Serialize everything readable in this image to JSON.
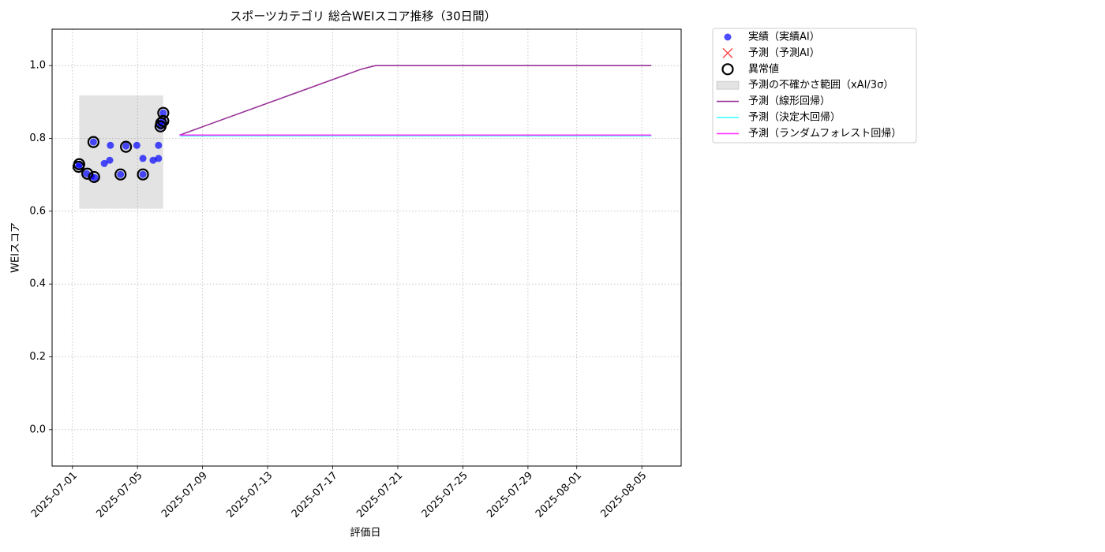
{
  "chart_data": {
    "type": "scatter",
    "title": "スポーツカテゴリ 総合WEIスコア推移（30日間）",
    "x_label": "評価日",
    "y_label": "WEIスコア",
    "xlim": [
      "2025-06-29T18:00",
      "2025-08-07T10:00"
    ],
    "xticks": [
      "2025-07-01",
      "2025-07-05",
      "2025-07-09",
      "2025-07-13",
      "2025-07-17",
      "2025-07-21",
      "2025-07-25",
      "2025-07-29",
      "2025-08-01",
      "2025-08-05"
    ],
    "ylim": [
      -0.1,
      1.1
    ],
    "yticks": [
      {
        "value": 0,
        "label": "0.0"
      },
      0.2,
      0.4,
      0.6,
      0.8,
      {
        "value": 1,
        "label": "1.0"
      }
    ],
    "grid": true,
    "legend_loc": "outside-upper-right",
    "series": [
      {
        "name": "実績（実績AI）",
        "kind": "dot",
        "color": "#0000ff",
        "x": [
          "2025-07-01T09:00",
          "2025-07-01T10:00",
          "2025-07-01T21:00",
          "2025-07-02T04:00",
          "2025-07-02T07:00",
          "2025-07-02T09:00",
          "2025-07-02T23:00",
          "2025-07-03T07:00",
          "2025-07-03T08:00",
          "2025-07-03T23:00",
          "2025-07-04T07:00",
          "2025-07-04T23:00",
          "2025-07-05T08:00",
          "2025-07-05T08:00",
          "2025-07-05T23:00",
          "2025-07-06T07:00",
          "2025-07-06T07:00",
          "2025-07-06T10:00",
          "2025-07-06T10:00",
          "2025-07-06T14:00",
          "2025-07-06T14:00"
        ],
        "values": [
          0.722,
          0.729,
          0.703,
          0.696,
          0.79,
          0.692,
          0.731,
          0.74,
          0.781,
          0.701,
          0.779,
          0.781,
          0.701,
          0.745,
          0.74,
          0.781,
          0.745,
          0.833,
          0.842,
          0.848,
          0.87
        ]
      },
      {
        "name": "予測（予測AI）",
        "kind": "cross",
        "color": "#ff0000",
        "x": [],
        "values": []
      },
      {
        "name": "異常値",
        "kind": "ring",
        "color": "#000000",
        "x": [
          "2025-07-01T09:00",
          "2025-07-01T10:00",
          "2025-07-01T22:00",
          "2025-07-02T07:00",
          "2025-07-02T08:00",
          "2025-07-03T23:00",
          "2025-07-04T07:00",
          "2025-07-05T08:00",
          "2025-07-06T10:00",
          "2025-07-06T11:00",
          "2025-07-06T14:00",
          "2025-07-06T14:00"
        ],
        "values": [
          0.722,
          0.729,
          0.703,
          0.79,
          0.694,
          0.701,
          0.777,
          0.701,
          0.833,
          0.842,
          0.87,
          0.848
        ]
      },
      {
        "name": "予測の不確かさ範囲（xAI/3σ）",
        "kind": "band",
        "color": "#808080",
        "x": [
          "2025-07-01T10:00",
          "2025-07-06T14:00"
        ],
        "lower": [
          0.607,
          0.607
        ],
        "upper": [
          0.918,
          0.918
        ]
      },
      {
        "name": "予測（線形回帰）",
        "kind": "line",
        "color": "#993399",
        "x": [
          "2025-07-07T14:00",
          "2025-07-18T18:00",
          "2025-07-19T15:00",
          "2025-08-05T14:00"
        ],
        "values": [
          0.809,
          0.99,
          1.0,
          1.0
        ]
      },
      {
        "name": "予測（決定木回帰）",
        "kind": "line",
        "color": "#33ffff",
        "x": [
          "2025-07-07T14:00",
          "2025-08-05T14:00"
        ],
        "values": [
          0.807,
          0.807
        ]
      },
      {
        "name": "予測（ランダムフォレスト回帰）",
        "kind": "line",
        "color": "#ff33ff",
        "x": [
          "2025-07-07T14:00",
          "2025-08-05T14:00"
        ],
        "values": [
          0.809,
          0.809
        ]
      }
    ]
  }
}
